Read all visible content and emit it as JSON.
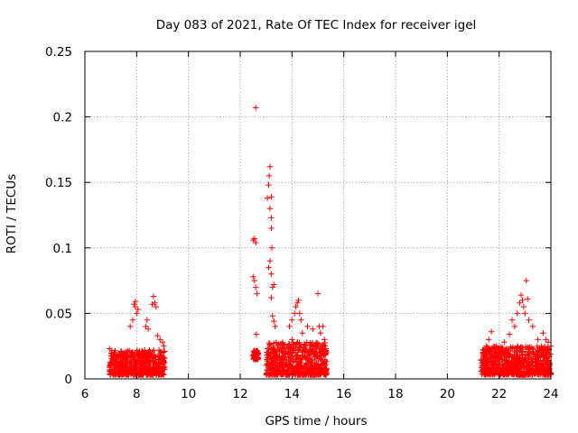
{
  "chart_data": {
    "type": "scatter",
    "title": "Day 083 of 2021, Rate Of TEC Index for receiver igel",
    "xlabel": "GPS time / hours",
    "ylabel": "ROTI / TECUs",
    "xlim": [
      6,
      24
    ],
    "ylim": [
      0,
      0.25
    ],
    "xticks": [
      6,
      8,
      10,
      12,
      14,
      16,
      18,
      20,
      22,
      24
    ],
    "xtick_labels": [
      "6",
      "8",
      "10",
      "12",
      "14",
      "16",
      "18",
      "20",
      "22",
      "24"
    ],
    "yticks": [
      0,
      0.05,
      0.1,
      0.15,
      0.2,
      0.25
    ],
    "ytick_labels": [
      "0",
      "0.05",
      "0.1",
      "0.15",
      "0.2",
      "0.25"
    ],
    "grid": true,
    "marker": "+",
    "series": [
      {
        "name": "ROTI",
        "color": "#ff0000",
        "points": [
          [
            6.95,
            0.023
          ],
          [
            7.1,
            0.015
          ],
          [
            7.3,
            0.018
          ],
          [
            7.5,
            0.02
          ],
          [
            7.7,
            0.017
          ],
          [
            7.75,
            0.04
          ],
          [
            7.85,
            0.045
          ],
          [
            7.9,
            0.057
          ],
          [
            7.95,
            0.059
          ],
          [
            8.0,
            0.05
          ],
          [
            8.05,
            0.053
          ],
          [
            7.95,
            0.055
          ],
          [
            8.35,
            0.04
          ],
          [
            8.4,
            0.045
          ],
          [
            8.45,
            0.038
          ],
          [
            8.6,
            0.057
          ],
          [
            8.65,
            0.063
          ],
          [
            8.7,
            0.058
          ],
          [
            8.75,
            0.055
          ],
          [
            8.8,
            0.033
          ],
          [
            8.9,
            0.03
          ],
          [
            9.0,
            0.028
          ],
          [
            9.05,
            0.025
          ],
          [
            12.5,
            0.106
          ],
          [
            12.55,
            0.107
          ],
          [
            12.6,
            0.104
          ],
          [
            12.5,
            0.078
          ],
          [
            12.55,
            0.075
          ],
          [
            12.6,
            0.07
          ],
          [
            12.65,
            0.065
          ],
          [
            12.6,
            0.207
          ],
          [
            12.62,
            0.034
          ],
          [
            12.55,
            0.02
          ],
          [
            12.6,
            0.018
          ],
          [
            13.05,
            0.138
          ],
          [
            13.1,
            0.148
          ],
          [
            13.12,
            0.155
          ],
          [
            13.15,
            0.162
          ],
          [
            13.2,
            0.139
          ],
          [
            13.15,
            0.13
          ],
          [
            13.2,
            0.123
          ],
          [
            13.2,
            0.115
          ],
          [
            13.22,
            0.1
          ],
          [
            13.15,
            0.09
          ],
          [
            13.1,
            0.085
          ],
          [
            13.2,
            0.08
          ],
          [
            13.25,
            0.07
          ],
          [
            13.3,
            0.072
          ],
          [
            13.2,
            0.062
          ],
          [
            13.25,
            0.048
          ],
          [
            13.3,
            0.044
          ],
          [
            13.35,
            0.04
          ],
          [
            13.9,
            0.04
          ],
          [
            14.0,
            0.045
          ],
          [
            14.1,
            0.05
          ],
          [
            14.15,
            0.055
          ],
          [
            14.2,
            0.058
          ],
          [
            14.25,
            0.06
          ],
          [
            14.3,
            0.05
          ],
          [
            14.35,
            0.045
          ],
          [
            14.0,
            0.03
          ],
          [
            14.4,
            0.035
          ],
          [
            14.6,
            0.04
          ],
          [
            14.8,
            0.038
          ],
          [
            15.0,
            0.065
          ],
          [
            15.05,
            0.04
          ],
          [
            15.1,
            0.035
          ],
          [
            15.2,
            0.04
          ],
          [
            15.25,
            0.03
          ],
          [
            21.4,
            0.018
          ],
          [
            21.5,
            0.025
          ],
          [
            21.6,
            0.03
          ],
          [
            21.7,
            0.036
          ],
          [
            21.9,
            0.025
          ],
          [
            22.0,
            0.02
          ],
          [
            22.2,
            0.028
          ],
          [
            22.4,
            0.034
          ],
          [
            22.5,
            0.045
          ],
          [
            22.6,
            0.04
          ],
          [
            22.7,
            0.05
          ],
          [
            22.8,
            0.058
          ],
          [
            22.85,
            0.064
          ],
          [
            22.9,
            0.06
          ],
          [
            22.95,
            0.055
          ],
          [
            23.0,
            0.05
          ],
          [
            23.05,
            0.075
          ],
          [
            23.1,
            0.061
          ],
          [
            23.15,
            0.045
          ],
          [
            23.3,
            0.04
          ],
          [
            23.5,
            0.03
          ],
          [
            23.7,
            0.035
          ],
          [
            23.8,
            0.03
          ],
          [
            23.9,
            0.028
          ],
          [
            24.0,
            0.025
          ]
        ],
        "dense_bands": [
          {
            "x": [
              6.95,
              9.1
            ],
            "y": [
              0.003,
              0.022
            ]
          },
          {
            "x": [
              12.5,
              12.7
            ],
            "y": [
              0.015,
              0.022
            ]
          },
          {
            "x": [
              13.0,
              15.35
            ],
            "y": [
              0.003,
              0.028
            ]
          },
          {
            "x": [
              21.3,
              24.0
            ],
            "y": [
              0.003,
              0.025
            ]
          }
        ]
      }
    ]
  }
}
